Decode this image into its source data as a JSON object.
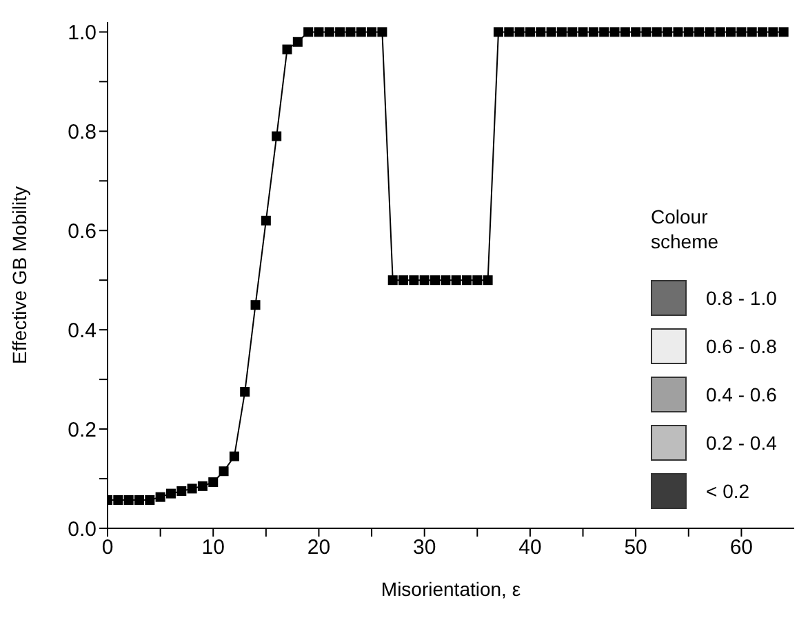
{
  "chart_data": {
    "type": "line",
    "xlabel": "Misorientation, ε",
    "ylabel": "Effective GB Mobility",
    "x": [
      0,
      1,
      2,
      3,
      4,
      5,
      6,
      7,
      8,
      9,
      10,
      11,
      12,
      13,
      14,
      15,
      16,
      17,
      18,
      19,
      20,
      21,
      22,
      23,
      24,
      25,
      26,
      27,
      28,
      29,
      30,
      31,
      32,
      33,
      34,
      35,
      36,
      37,
      38,
      39,
      40,
      41,
      42,
      43,
      44,
      45,
      46,
      47,
      48,
      49,
      50,
      51,
      52,
      53,
      54,
      55,
      56,
      57,
      58,
      59,
      60,
      61,
      62,
      63,
      64
    ],
    "series": [
      {
        "color": "#000000",
        "values": [
          0.057,
          0.057,
          0.057,
          0.057,
          0.057,
          0.063,
          0.07,
          0.075,
          0.08,
          0.085,
          0.093,
          0.115,
          0.145,
          0.275,
          0.45,
          0.62,
          0.79,
          0.965,
          0.98,
          1,
          1,
          1,
          1,
          1,
          1,
          1,
          1,
          0.5,
          0.5,
          0.5,
          0.5,
          0.5,
          0.5,
          0.5,
          0.5,
          0.5,
          0.5,
          1,
          1,
          1,
          1,
          1,
          1,
          1,
          1,
          1,
          1,
          1,
          1,
          1,
          1,
          1,
          1,
          1,
          1,
          1,
          1,
          1,
          1,
          1,
          1,
          1,
          1,
          1,
          1
        ]
      }
    ],
    "marker": "square",
    "line_style": "solid",
    "legend": false,
    "grid": false,
    "xlim": [
      0,
      65
    ],
    "xticks": [
      0,
      {
        "value": 5,
        "label": null
      },
      10,
      {
        "value": 15,
        "label": null
      },
      20,
      {
        "value": 25,
        "label": null
      },
      30,
      {
        "value": 35,
        "label": null
      },
      40,
      {
        "value": 45,
        "label": null
      },
      50,
      {
        "value": 55,
        "label": null
      },
      60
    ],
    "ylim": [
      0,
      1.02
    ],
    "yticks": [
      {
        "value": 0,
        "label": "0.0"
      },
      {
        "value": 0.1,
        "label": null
      },
      {
        "value": 0.2,
        "label": "0.2"
      },
      {
        "value": 0.3,
        "label": null
      },
      {
        "value": 0.4,
        "label": "0.4"
      },
      {
        "value": 0.5,
        "label": null
      },
      {
        "value": 0.6,
        "label": "0.6"
      },
      {
        "value": 0.7,
        "label": null
      },
      {
        "value": 0.8,
        "label": "0.8"
      },
      {
        "value": 0.9,
        "label": null
      },
      {
        "value": 1,
        "label": "1.0"
      }
    ],
    "annotations": [
      "Colour scheme",
      "0.8 - 1.0",
      "0.6 - 0.8",
      "0.4 - 0.6",
      "0.2 - 0.4",
      "< 0.2"
    ]
  }
}
